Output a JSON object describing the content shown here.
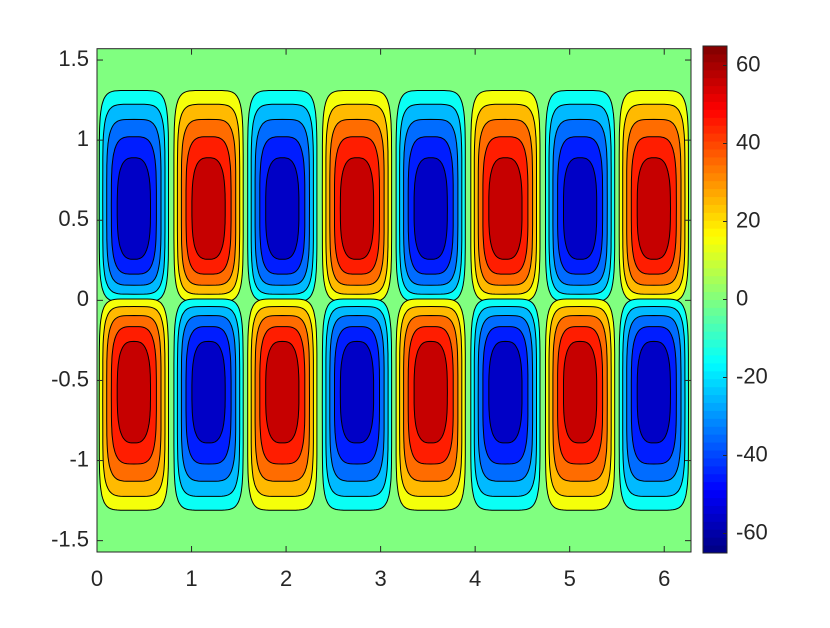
{
  "chart_data": {
    "type": "contour",
    "xlim": [
      0,
      6.2832
    ],
    "ylim": [
      -1.5708,
      1.5708
    ],
    "xticks": [
      0,
      1,
      2,
      3,
      4,
      5,
      6
    ],
    "yticks": [
      -1.5,
      -1,
      -0.5,
      0,
      0.5,
      1,
      1.5
    ],
    "clim": [
      -65,
      65
    ],
    "cticks": [
      -60,
      -40,
      -20,
      0,
      20,
      40,
      60
    ],
    "colormap": "jet",
    "levels": [
      10,
      20,
      30,
      40,
      50
    ],
    "peaks": [
      {
        "x": 0.39,
        "y": 0.55,
        "value": -62
      },
      {
        "x": 1.18,
        "y": 0.55,
        "value": 62
      },
      {
        "x": 1.96,
        "y": 0.55,
        "value": -62
      },
      {
        "x": 2.75,
        "y": 0.55,
        "value": 62
      },
      {
        "x": 3.53,
        "y": 0.55,
        "value": -62
      },
      {
        "x": 4.32,
        "y": 0.55,
        "value": 62
      },
      {
        "x": 5.11,
        "y": 0.55,
        "value": -62
      },
      {
        "x": 5.89,
        "y": 0.55,
        "value": 62
      },
      {
        "x": 0.39,
        "y": -0.55,
        "value": 62
      },
      {
        "x": 1.18,
        "y": -0.55,
        "value": -62
      },
      {
        "x": 1.96,
        "y": -0.55,
        "value": 62
      },
      {
        "x": 2.75,
        "y": -0.55,
        "value": -62
      },
      {
        "x": 3.53,
        "y": -0.55,
        "value": 62
      },
      {
        "x": 4.32,
        "y": -0.55,
        "value": -62
      },
      {
        "x": 5.11,
        "y": -0.55,
        "value": 62
      },
      {
        "x": 5.89,
        "y": -0.55,
        "value": -62
      }
    ]
  }
}
